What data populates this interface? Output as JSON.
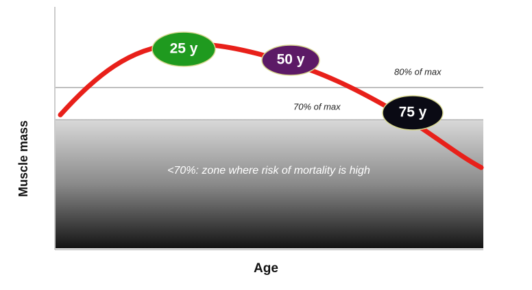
{
  "axes": {
    "y_label": "Muscle mass",
    "x_label": "Age"
  },
  "annotations": {
    "line_80": "80% of max",
    "line_70": "70% of max",
    "zone": "<70%: zone where risk of mortality is high"
  },
  "markers": [
    "25 y",
    "50 y",
    "75 y"
  ]
}
